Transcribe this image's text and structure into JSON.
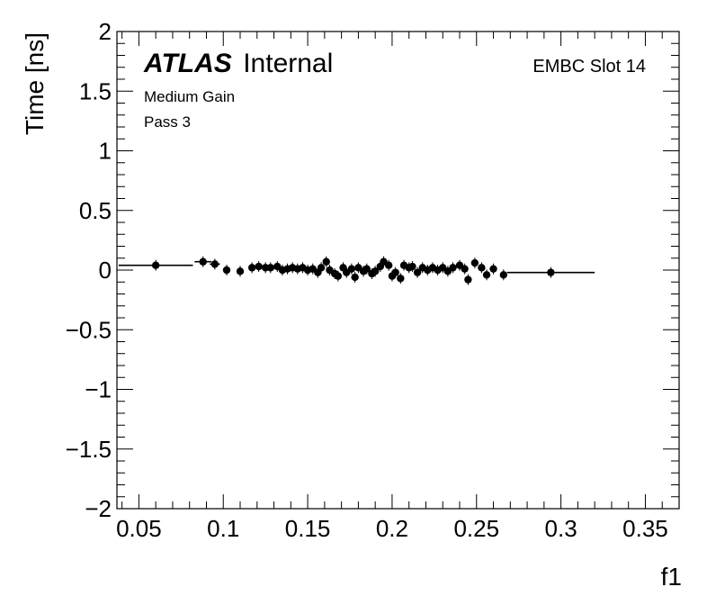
{
  "chart_data": {
    "type": "scatter",
    "xlabel": "f1",
    "ylabel": "Time [ns]",
    "xlim": [
      0.037,
      0.37
    ],
    "ylim": [
      -2,
      2
    ],
    "x_ticks": [
      0.05,
      0.1,
      0.15,
      0.2,
      0.25,
      0.3,
      0.35
    ],
    "x_tick_labels": [
      "0.05",
      "0.1",
      "0.15",
      "0.2",
      "0.25",
      "0.3",
      "0.35"
    ],
    "y_ticks": [
      -2,
      -1.5,
      -1,
      -0.5,
      0,
      0.5,
      1,
      1.5,
      2
    ],
    "y_tick_labels": [
      "−2",
      "−1.5",
      "−1",
      "−0.5",
      "0",
      "0.5",
      "1",
      "1.5",
      "2"
    ],
    "grid": false,
    "atlas_label": "ATLAS",
    "atlas_suffix": "Internal",
    "annotations": [
      "Medium Gain",
      "Pass 3"
    ],
    "region_label": "EMBC Slot 14",
    "points": [
      {
        "x": 0.06,
        "y": 0.04,
        "xerr": 0.022
      },
      {
        "x": 0.088,
        "y": 0.07,
        "xerr": 0.005
      },
      {
        "x": 0.095,
        "y": 0.05,
        "xerr": 0.003
      },
      {
        "x": 0.102,
        "y": 0.0,
        "xerr": 0.002
      },
      {
        "x": 0.11,
        "y": -0.01,
        "xerr": 0.002
      },
      {
        "x": 0.117,
        "y": 0.02,
        "xerr": 0.002
      },
      {
        "x": 0.121,
        "y": 0.03,
        "xerr": 0.001
      },
      {
        "x": 0.125,
        "y": 0.02,
        "xerr": 0.001
      },
      {
        "x": 0.128,
        "y": 0.02,
        "xerr": 0.001
      },
      {
        "x": 0.132,
        "y": 0.03,
        "xerr": 0.001
      },
      {
        "x": 0.135,
        "y": 0.0,
        "xerr": 0.001
      },
      {
        "x": 0.138,
        "y": 0.01,
        "xerr": 0.001
      },
      {
        "x": 0.141,
        "y": 0.02,
        "xerr": 0.001
      },
      {
        "x": 0.144,
        "y": 0.01,
        "xerr": 0.001
      },
      {
        "x": 0.147,
        "y": 0.02,
        "xerr": 0.001
      },
      {
        "x": 0.15,
        "y": 0.0,
        "xerr": 0.001
      },
      {
        "x": 0.153,
        "y": 0.01,
        "xerr": 0.001
      },
      {
        "x": 0.156,
        "y": -0.02,
        "xerr": 0.001
      },
      {
        "x": 0.158,
        "y": 0.02,
        "xerr": 0.001
      },
      {
        "x": 0.161,
        "y": 0.07,
        "xerr": 0.001
      },
      {
        "x": 0.163,
        "y": 0.0,
        "xerr": 0.001
      },
      {
        "x": 0.166,
        "y": -0.03,
        "xerr": 0.001
      },
      {
        "x": 0.168,
        "y": -0.05,
        "xerr": 0.001
      },
      {
        "x": 0.171,
        "y": 0.02,
        "xerr": 0.001
      },
      {
        "x": 0.173,
        "y": -0.02,
        "xerr": 0.001
      },
      {
        "x": 0.176,
        "y": 0.01,
        "xerr": 0.001
      },
      {
        "x": 0.178,
        "y": -0.06,
        "xerr": 0.001
      },
      {
        "x": 0.18,
        "y": 0.02,
        "xerr": 0.001
      },
      {
        "x": 0.183,
        "y": -0.01,
        "xerr": 0.001
      },
      {
        "x": 0.185,
        "y": 0.01,
        "xerr": 0.001
      },
      {
        "x": 0.188,
        "y": -0.03,
        "xerr": 0.001
      },
      {
        "x": 0.19,
        "y": -0.01,
        "xerr": 0.001
      },
      {
        "x": 0.193,
        "y": 0.03,
        "xerr": 0.001
      },
      {
        "x": 0.195,
        "y": 0.07,
        "xerr": 0.001
      },
      {
        "x": 0.198,
        "y": 0.04,
        "xerr": 0.001
      },
      {
        "x": 0.2,
        "y": -0.05,
        "xerr": 0.001
      },
      {
        "x": 0.202,
        "y": -0.02,
        "xerr": 0.001
      },
      {
        "x": 0.205,
        "y": -0.07,
        "xerr": 0.001
      },
      {
        "x": 0.207,
        "y": 0.04,
        "xerr": 0.001
      },
      {
        "x": 0.21,
        "y": 0.02,
        "xerr": 0.001
      },
      {
        "x": 0.212,
        "y": 0.03,
        "xerr": 0.001
      },
      {
        "x": 0.215,
        "y": -0.02,
        "xerr": 0.001
      },
      {
        "x": 0.218,
        "y": 0.02,
        "xerr": 0.001
      },
      {
        "x": 0.221,
        "y": 0.0,
        "xerr": 0.001
      },
      {
        "x": 0.224,
        "y": 0.02,
        "xerr": 0.001
      },
      {
        "x": 0.227,
        "y": 0.0,
        "xerr": 0.001
      },
      {
        "x": 0.23,
        "y": 0.02,
        "xerr": 0.001
      },
      {
        "x": 0.233,
        "y": -0.01,
        "xerr": 0.001
      },
      {
        "x": 0.236,
        "y": 0.02,
        "xerr": 0.001
      },
      {
        "x": 0.24,
        "y": 0.04,
        "xerr": 0.001
      },
      {
        "x": 0.243,
        "y": 0.01,
        "xerr": 0.001
      },
      {
        "x": 0.245,
        "y": -0.08,
        "xerr": 0.001
      },
      {
        "x": 0.249,
        "y": 0.06,
        "xerr": 0.001
      },
      {
        "x": 0.253,
        "y": 0.02,
        "xerr": 0.001
      },
      {
        "x": 0.256,
        "y": -0.04,
        "xerr": 0.001
      },
      {
        "x": 0.26,
        "y": 0.01,
        "xerr": 0.001
      },
      {
        "x": 0.266,
        "y": -0.04,
        "xerr": 0.002
      },
      {
        "x": 0.294,
        "y": -0.02,
        "xerr": 0.026
      }
    ]
  }
}
